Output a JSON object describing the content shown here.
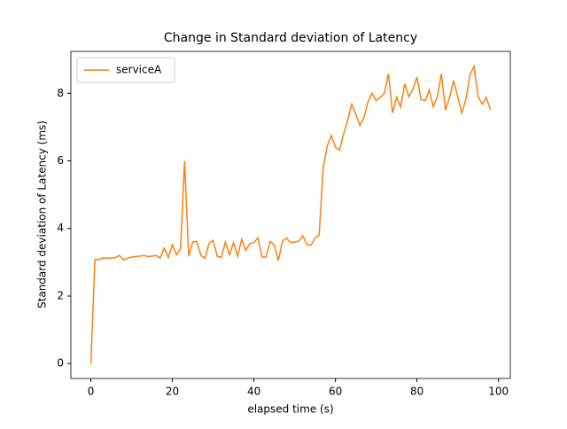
{
  "chart_data": {
    "type": "line",
    "title": "Change in Standard deviation of Latency",
    "xlabel": "elapsed time (s)",
    "ylabel": "Standard deviation of Latency (ms)",
    "x": [
      0,
      1,
      2,
      3,
      4,
      5,
      6,
      7,
      8,
      9,
      10,
      11,
      12,
      13,
      14,
      15,
      16,
      17,
      18,
      19,
      20,
      21,
      22,
      23,
      24,
      25,
      26,
      27,
      28,
      29,
      30,
      31,
      32,
      33,
      34,
      35,
      36,
      37,
      38,
      39,
      40,
      41,
      42,
      43,
      44,
      45,
      46,
      47,
      48,
      49,
      50,
      51,
      52,
      53,
      54,
      55,
      56,
      57,
      58,
      59,
      60,
      61,
      62,
      63,
      64,
      65,
      66,
      67,
      68,
      69,
      70,
      71,
      72,
      73,
      74,
      75,
      76,
      77,
      78,
      79,
      80,
      81,
      82,
      83,
      84,
      85,
      86,
      87,
      88,
      89,
      90,
      91,
      92,
      93,
      94,
      95,
      96,
      97,
      98
    ],
    "series": [
      {
        "name": "serviceA",
        "color": "#ff7f0e",
        "values": [
          0,
          3.08,
          3.08,
          3.13,
          3.12,
          3.12,
          3.14,
          3.2,
          3.07,
          3.12,
          3.15,
          3.17,
          3.18,
          3.2,
          3.17,
          3.18,
          3.2,
          3.12,
          3.42,
          3.14,
          3.52,
          3.22,
          3.4,
          6.0,
          3.18,
          3.6,
          3.62,
          3.2,
          3.12,
          3.56,
          3.65,
          3.18,
          3.14,
          3.6,
          3.22,
          3.58,
          3.18,
          3.68,
          3.35,
          3.55,
          3.58,
          3.72,
          3.15,
          3.15,
          3.62,
          3.5,
          3.05,
          3.62,
          3.72,
          3.58,
          3.6,
          3.62,
          3.78,
          3.52,
          3.5,
          3.72,
          3.8,
          5.8,
          6.45,
          6.75,
          6.4,
          6.32,
          6.8,
          7.2,
          7.68,
          7.38,
          7.05,
          7.28,
          7.75,
          8.0,
          7.78,
          7.88,
          8.0,
          8.58,
          7.42,
          7.88,
          7.6,
          8.28,
          7.9,
          8.12,
          8.48,
          7.82,
          7.78,
          8.1,
          7.6,
          7.9,
          8.58,
          7.5,
          7.88,
          8.38,
          7.9,
          7.42,
          7.82,
          8.55,
          8.8,
          7.9,
          7.68,
          7.88,
          7.52
        ]
      }
    ],
    "xlim": [
      -4.9,
      102.9
    ],
    "ylim": [
      -0.44,
      9.24
    ],
    "xticks": [
      0,
      20,
      40,
      60,
      80,
      100
    ],
    "yticks": [
      0,
      2,
      4,
      6,
      8
    ],
    "grid": false,
    "legend": "upper left"
  }
}
